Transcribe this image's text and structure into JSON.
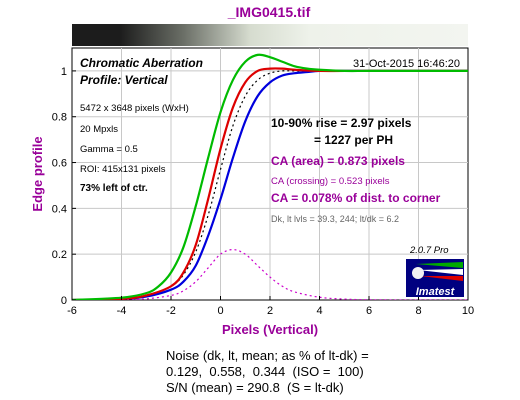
{
  "title": "_IMG0415.tif",
  "chart_data": {
    "type": "line",
    "xlabel": "Pixels (Vertical)",
    "ylabel": "Edge profile",
    "xlim": [
      -6,
      10
    ],
    "ylim": [
      0,
      1.1
    ],
    "x_ticks": [
      -6,
      -4,
      -2,
      0,
      2,
      4,
      6,
      8,
      10
    ],
    "y_ticks": [
      0,
      0.2,
      0.4,
      0.6,
      0.8,
      1
    ],
    "grid": true,
    "series": [
      {
        "color": "#00bb00",
        "x": [
          -6,
          -4,
          -3,
          -2.5,
          -2,
          -1.5,
          -1,
          -0.5,
          0,
          0.5,
          1,
          1.5,
          2,
          2.5,
          3,
          3.5,
          4,
          5,
          6,
          8,
          10
        ],
        "y": [
          0,
          0.01,
          0.03,
          0.06,
          0.12,
          0.23,
          0.41,
          0.62,
          0.82,
          0.96,
          1.04,
          1.07,
          1.06,
          1.04,
          1.02,
          1.01,
          1.005,
          1.0,
          1.0,
          1.0,
          1.0
        ]
      },
      {
        "color": "#dd0000",
        "x": [
          -6,
          -4,
          -3,
          -2,
          -1.5,
          -1,
          -0.5,
          0,
          0.5,
          1,
          1.5,
          2,
          2.5,
          3,
          4,
          6,
          10
        ],
        "y": [
          0,
          0.005,
          0.02,
          0.06,
          0.12,
          0.24,
          0.44,
          0.66,
          0.84,
          0.95,
          1.0,
          1.01,
          1.01,
          1.005,
          1.0,
          1.0,
          1.0
        ]
      },
      {
        "color": "#0000dd",
        "x": [
          -6,
          -4,
          -3,
          -2,
          -1.5,
          -1,
          -0.5,
          0,
          0.5,
          1,
          1.5,
          2,
          2.5,
          3,
          3.5,
          4,
          5,
          6,
          8,
          10
        ],
        "y": [
          0,
          0.005,
          0.015,
          0.045,
          0.08,
          0.15,
          0.28,
          0.44,
          0.62,
          0.78,
          0.89,
          0.95,
          0.98,
          0.99,
          0.995,
          1.0,
          1.0,
          1.0,
          1.0,
          1.0
        ]
      },
      {
        "color": "#000000",
        "dash": "2,3",
        "x": [
          -6,
          -4,
          -3,
          -2,
          -1.5,
          -1,
          -0.5,
          0,
          0.5,
          1,
          1.5,
          2,
          2.5,
          3,
          4,
          6,
          10
        ],
        "y": [
          0,
          0.005,
          0.02,
          0.06,
          0.11,
          0.21,
          0.37,
          0.57,
          0.76,
          0.89,
          0.96,
          0.99,
          1.0,
          1.0,
          1.0,
          1.0,
          1.0
        ]
      },
      {
        "color": "#cc00cc",
        "dash": "2,3",
        "x": [
          -6,
          -4,
          -3,
          -2,
          -1.5,
          -1,
          -0.5,
          0,
          0.5,
          1,
          1.5,
          2,
          2.5,
          3,
          4,
          5,
          6,
          8,
          10
        ],
        "y": [
          0,
          0.0,
          0.005,
          0.02,
          0.04,
          0.08,
          0.14,
          0.2,
          0.22,
          0.2,
          0.15,
          0.1,
          0.06,
          0.035,
          0.012,
          0.004,
          0.001,
          0,
          0
        ]
      }
    ]
  },
  "annotations": {
    "heading": "Chromatic Aberration",
    "profile": "Profile: Vertical",
    "date": "31-Oct-2015 16:46:20",
    "dims": "5472 x 3648 pixels (WxH)",
    "mpxls": "20 Mpxls",
    "gamma": "Gamma = 0.5",
    "roi": "ROI: 415x131 pixels",
    "loc": "73% left of ctr.",
    "rise1": "10-90% rise = 2.97 pixels",
    "rise2": "= 1227 per PH",
    "ca_area": "CA (area) = 0.873 pixels",
    "ca_cross": "CA (crossing) = 0.523 pixels",
    "ca_dist": "CA = 0.078% of dist. to corner",
    "levels": "Dk, lt lvls = 39.3, 244;  lt/dk = 6.2",
    "version": "2.0.7  Pro",
    "logo": "Imatest"
  },
  "notes": {
    "line1": "Noise (dk, lt, mean; as % of lt-dk) =",
    "line2": "0.129,  0.558,  0.344  (ISO =  100)",
    "line3": "S/N (mean) = 290.8  (S = lt-dk)"
  },
  "colors": {
    "purple": "#990099",
    "navy": "#000080",
    "gradient_dark": "#1c1c1c",
    "gradient_light": "#eef2ea"
  }
}
